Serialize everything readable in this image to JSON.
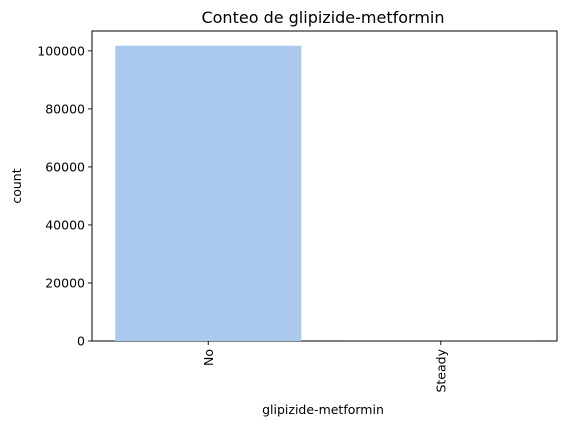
{
  "chart_data": {
    "type": "bar",
    "title": "Conteo de glipizide-metformin",
    "xlabel": "glipizide-metformin",
    "ylabel": "count",
    "categories": [
      "No",
      "Steady"
    ],
    "values": [
      101753,
      13
    ],
    "ylim": [
      0,
      106841
    ],
    "yticks": [
      0,
      20000,
      40000,
      60000,
      80000,
      100000
    ],
    "ytick_labels": [
      "0",
      "20000",
      "40000",
      "60000",
      "80000",
      "100000"
    ],
    "bar_color": "#abc9ee",
    "xtick_rotation": "vertical",
    "grid": false,
    "legend": "none"
  }
}
